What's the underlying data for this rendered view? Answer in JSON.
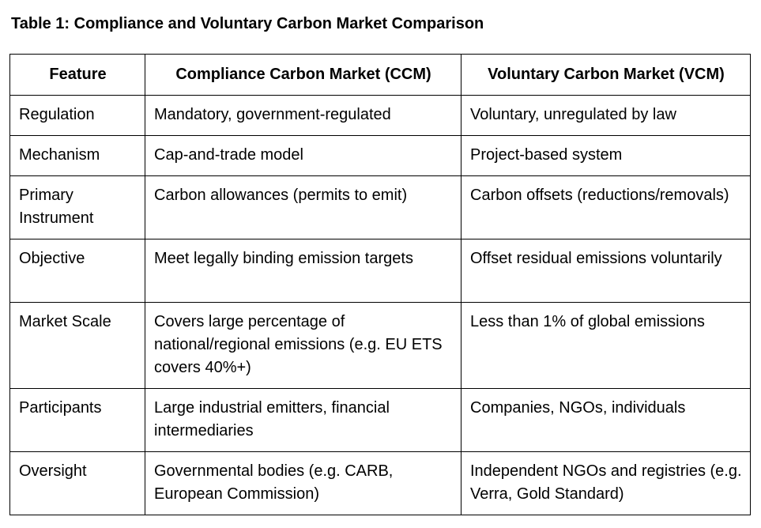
{
  "caption": "Table 1: Compliance and Voluntary Carbon Market Comparison",
  "table": {
    "headers": [
      "Feature",
      "Compliance Carbon Market (CCM)",
      "Voluntary Carbon Market (VCM)"
    ],
    "rows": [
      {
        "feature": "Regulation",
        "ccm": "Mandatory, government-regulated",
        "vcm": "Voluntary, unregulated by law"
      },
      {
        "feature": "Mechanism",
        "ccm": "Cap-and-trade model",
        "vcm": "Project-based system"
      },
      {
        "feature": "Primary Instrument",
        "ccm": "Carbon allowances (permits to emit)",
        "vcm": "Carbon offsets (reductions/removals)"
      },
      {
        "feature": "Objective",
        "ccm": "Meet legally binding emission targets",
        "vcm": "Offset residual emissions voluntarily"
      },
      {
        "feature": "Market Scale",
        "ccm": "Covers large percentage of national/regional emissions (e.g. EU ETS covers 40%+)",
        "vcm": "Less than 1% of global emissions"
      },
      {
        "feature": "Participants",
        "ccm": "Large industrial emitters, financial intermediaries",
        "vcm": "Companies, NGOs, individuals"
      },
      {
        "feature": "Oversight",
        "ccm": "Governmental bodies (e.g. CARB, European Commission)",
        "vcm": "Independent NGOs and registries (e.g. Verra, Gold Standard)"
      }
    ]
  }
}
